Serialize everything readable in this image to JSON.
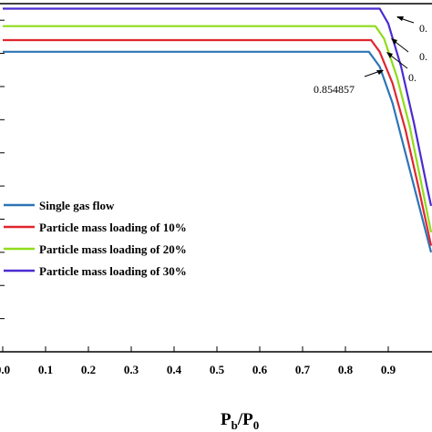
{
  "chart_data": {
    "type": "line",
    "xlabel": "P",
    "xlabel_sub1": "b",
    "xlabel_slash": "/P",
    "xlabel_sub2": "0",
    "xlim": [
      0,
      1.0
    ],
    "ylim": [
      0,
      1.05
    ],
    "x_ticks": [
      "0.0",
      "0.1",
      "0.2",
      "0.3",
      "0.4",
      "0.5",
      "0.6",
      "0.7",
      "0.8",
      "0.9"
    ],
    "grid": false,
    "legend_position": "left",
    "series": [
      {
        "name": "Single gas flow",
        "color": "#2e75b6",
        "x": [
          0,
          0.854857,
          0.88,
          0.91,
          0.94,
          0.97,
          1.0
        ],
        "y": [
          0.905,
          0.905,
          0.86,
          0.75,
          0.6,
          0.45,
          0.3
        ]
      },
      {
        "name": "Particle mass loading of 10%",
        "color": "#e0262f",
        "x": [
          0,
          0.86,
          0.88,
          0.91,
          0.94,
          0.97,
          1.0
        ],
        "y": [
          0.94,
          0.94,
          0.905,
          0.81,
          0.67,
          0.5,
          0.32
        ]
      },
      {
        "name": "Particle mass loading of 20%",
        "color": "#8fdc1a",
        "x": [
          0,
          0.87,
          0.89,
          0.92,
          0.95,
          0.98,
          1.0
        ],
        "y": [
          0.982,
          0.982,
          0.945,
          0.83,
          0.68,
          0.49,
          0.36
        ]
      },
      {
        "name": "Particle mass loading of 30%",
        "color": "#4b2bd1",
        "x": [
          0,
          0.88,
          0.9,
          0.93,
          0.96,
          0.99,
          1.0
        ],
        "y": [
          1.035,
          1.035,
          0.99,
          0.86,
          0.69,
          0.5,
          0.44
        ]
      }
    ],
    "annotations": [
      {
        "text": "0.854857"
      },
      {
        "text": "0."
      },
      {
        "text": "0."
      },
      {
        "text": "0."
      }
    ]
  }
}
